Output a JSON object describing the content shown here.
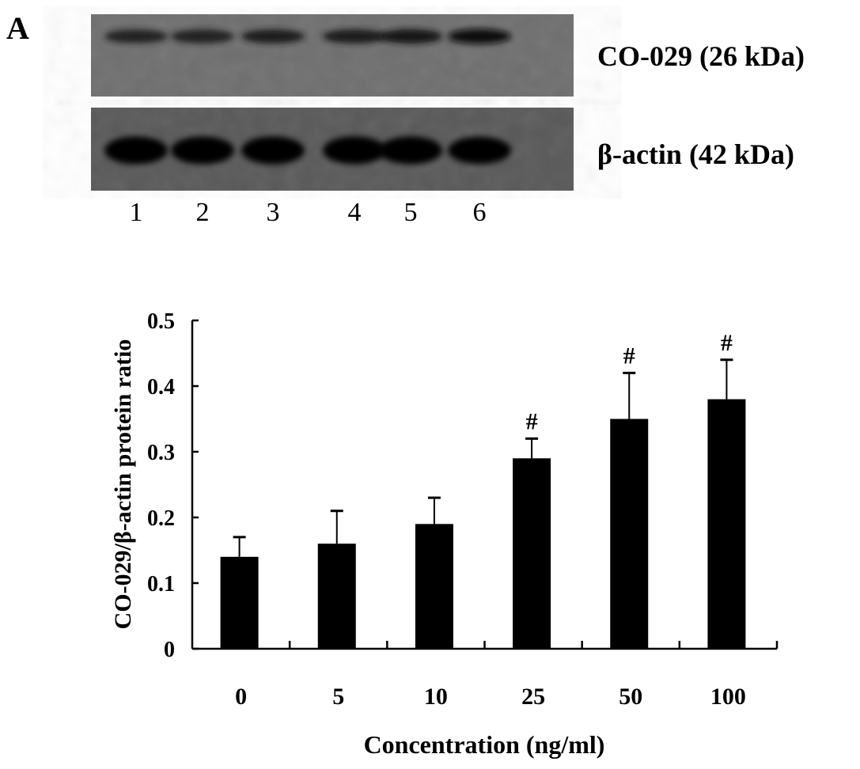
{
  "panel_label": "A",
  "blot": {
    "bands": [
      {
        "label": "CO-029 (26 kDa)",
        "intensity": [
          0.55,
          0.6,
          0.62,
          0.68,
          0.75,
          0.85
        ]
      },
      {
        "label": "β-actin (42 kDa)",
        "intensity": [
          1,
          1,
          1,
          1,
          1,
          0.95
        ]
      }
    ],
    "lanes": [
      "1",
      "2",
      "3",
      "4",
      "5",
      "6"
    ]
  },
  "chart_data": {
    "type": "bar",
    "title": "",
    "xlabel": "Concentration (ng/ml)",
    "ylabel": "CO-029/β-actin protein ratio",
    "categories": [
      "0",
      "5",
      "10",
      "25",
      "50",
      "100"
    ],
    "values": [
      0.14,
      0.16,
      0.19,
      0.29,
      0.35,
      0.38
    ],
    "error_upper": [
      0.17,
      0.21,
      0.23,
      0.32,
      0.42,
      0.44
    ],
    "annotations": [
      "",
      "",
      "",
      "#",
      "#",
      "#"
    ],
    "ylim": [
      0,
      0.5
    ],
    "yticks": [
      "0",
      "0.1",
      "0.2",
      "0.3",
      "0.4",
      "0.5"
    ],
    "grid": false,
    "bar_color": "#000000"
  }
}
